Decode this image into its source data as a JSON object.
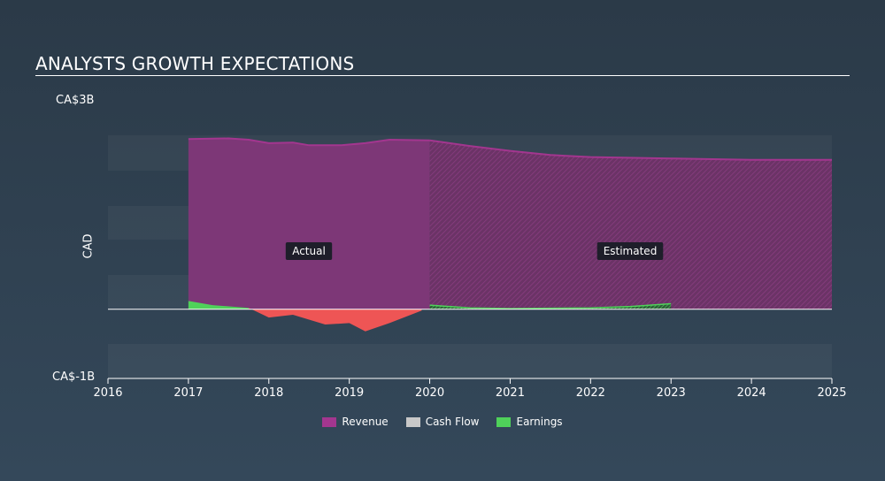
{
  "header": {
    "title": "ANALYSTS GROWTH EXPECTATIONS"
  },
  "chart_data": {
    "type": "area",
    "ylabel": "CAD",
    "ymax_label": "CA$3B",
    "ymin_label": "CA$-1B",
    "ylim": [
      -1,
      3
    ],
    "xlim": [
      2016,
      2025
    ],
    "x_ticks": [
      "2016",
      "2017",
      "2018",
      "2019",
      "2020",
      "2021",
      "2022",
      "2023",
      "2024",
      "2025"
    ],
    "split_year": 2020,
    "annotations": {
      "actual": "Actual",
      "estimated": "Estimated"
    },
    "series": [
      {
        "name": "Revenue",
        "color": "#a3368f",
        "points": [
          [
            2017.0,
            2.46
          ],
          [
            2017.5,
            2.47
          ],
          [
            2017.75,
            2.45
          ],
          [
            2018.0,
            2.4
          ],
          [
            2018.3,
            2.41
          ],
          [
            2018.5,
            2.37
          ],
          [
            2018.9,
            2.37
          ],
          [
            2019.2,
            2.4
          ],
          [
            2019.5,
            2.45
          ],
          [
            2020.0,
            2.44
          ],
          [
            2020.5,
            2.36
          ],
          [
            2021.0,
            2.29
          ],
          [
            2021.5,
            2.23
          ],
          [
            2022.0,
            2.2
          ],
          [
            2023.0,
            2.18
          ],
          [
            2024.0,
            2.16
          ],
          [
            2025.0,
            2.16
          ]
        ]
      },
      {
        "name": "Cash Flow",
        "color": "#c8c8c8",
        "points": []
      },
      {
        "name": "Earnings",
        "color": "#4fd15a",
        "points": [
          [
            2017.0,
            0.12
          ],
          [
            2017.3,
            0.06
          ],
          [
            2017.75,
            0.02
          ],
          [
            2018.0,
            -0.12
          ],
          [
            2018.3,
            -0.08
          ],
          [
            2018.7,
            -0.22
          ],
          [
            2019.0,
            -0.2
          ],
          [
            2019.2,
            -0.32
          ],
          [
            2019.5,
            -0.2
          ],
          [
            2019.9,
            -0.02
          ],
          [
            2020.0,
            0.06
          ],
          [
            2020.5,
            0.02
          ],
          [
            2021.0,
            0.01
          ],
          [
            2022.0,
            0.02
          ],
          [
            2022.5,
            0.04
          ],
          [
            2023.0,
            0.08
          ]
        ]
      }
    ],
    "legend": [
      {
        "label": "Revenue",
        "color": "#a3368f"
      },
      {
        "label": "Cash Flow",
        "color": "#c8c8c8"
      },
      {
        "label": "Earnings",
        "color": "#4fd15a"
      }
    ]
  }
}
